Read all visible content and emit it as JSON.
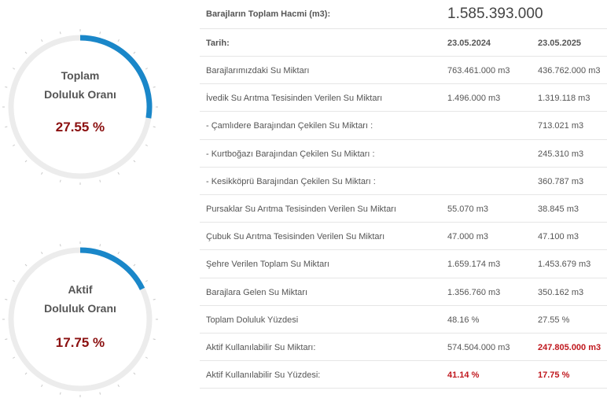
{
  "gauges": [
    {
      "title_line1": "Toplam",
      "title_line2": "Doluluk Oranı",
      "value_text": "27.55 %",
      "percent": 27.55,
      "arc_color": "#1a87c9",
      "track_color": "#ececec"
    },
    {
      "title_line1": "Aktif",
      "title_line2": "Doluluk Oranı",
      "value_text": "17.75 %",
      "percent": 17.75,
      "arc_color": "#1a87c9",
      "track_color": "#ececec"
    }
  ],
  "table": {
    "total_label": "Barajların Toplam Hacmi (m3):",
    "total_value": "1.585.393.000",
    "date_label": "Tarih:",
    "date_1": "23.05.2024",
    "date_2": "23.05.2025",
    "rows": [
      {
        "label": "Barajlarımızdaki Su Miktarı",
        "v1": "763.461.000 m3",
        "v2": "436.762.000 m3"
      },
      {
        "label": "İvedik Su Arıtma Tesisinden Verilen Su Miktarı",
        "v1": "1.496.000 m3",
        "v2": "1.319.118 m3"
      },
      {
        "label": "- Çamlıdere Barajından Çekilen Su Miktarı :",
        "v1": "",
        "v2": "713.021 m3"
      },
      {
        "label": "- Kurtboğazı Barajından Çekilen Su Miktarı :",
        "v1": "",
        "v2": "245.310 m3"
      },
      {
        "label": "- Kesikköprü Barajından Çekilen Su Miktarı :",
        "v1": "",
        "v2": "360.787 m3"
      },
      {
        "label": "Pursaklar Su Arıtma Tesisinden Verilen Su Miktarı",
        "v1": "55.070 m3",
        "v2": "38.845 m3"
      },
      {
        "label": "Çubuk Su Arıtma Tesisinden Verilen Su Miktarı",
        "v1": "47.000 m3",
        "v2": "47.100 m3"
      },
      {
        "label": "Şehre Verilen Toplam Su Miktarı",
        "v1": "1.659.174 m3",
        "v2": "1.453.679 m3"
      },
      {
        "label": "Barajlara Gelen Su Miktarı",
        "v1": "1.356.760 m3",
        "v2": "350.162 m3"
      },
      {
        "label": "Toplam Doluluk Yüzdesi",
        "v1": "48.16 %",
        "v2": "27.55 %"
      },
      {
        "label": "Aktif Kullanılabilir Su Miktarı:",
        "v1": "574.504.000 m3",
        "v2": "247.805.000 m3",
        "v2_highlight": true
      },
      {
        "label": "Aktif Kullanılabilir Su Yüzdesi:",
        "v1": "41.14 %",
        "v2": "17.75 %",
        "v1_highlight": true,
        "v2_highlight": true
      }
    ]
  }
}
